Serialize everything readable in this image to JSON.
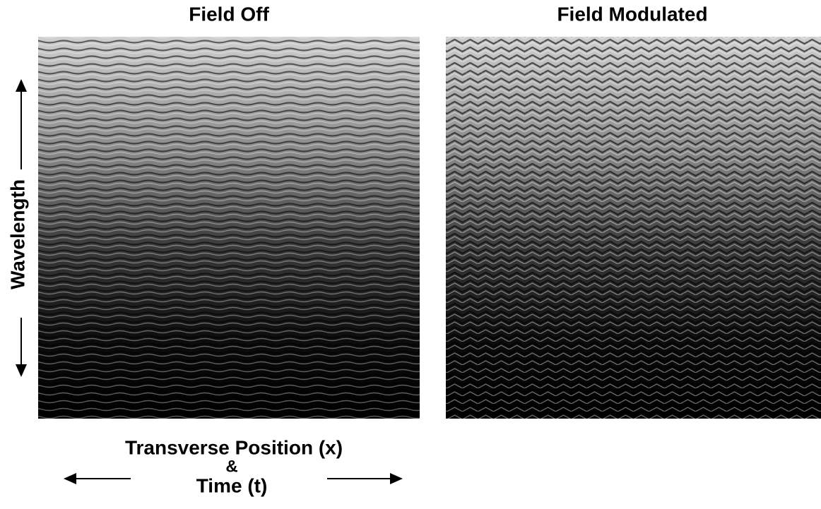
{
  "panels": [
    {
      "title": "Field Off"
    },
    {
      "title": "Field Modulated"
    }
  ],
  "y_label": "Wavelength",
  "x_label": {
    "line1": "Transverse Position (x)",
    "line2": "&",
    "line3": "Time (t)"
  }
}
